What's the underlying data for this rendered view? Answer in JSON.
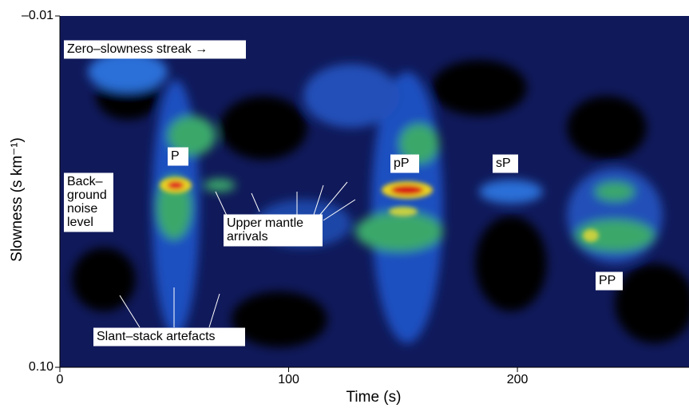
{
  "chart_data": {
    "type": "heatmap",
    "xlabel": "Time (s)",
    "ylabel": "Slowness (s km⁻¹)",
    "xlim": [
      0,
      275
    ],
    "xticks": [
      0,
      100,
      200
    ],
    "ylim": [
      -0.01,
      0.1
    ],
    "yticks": [
      {
        "value": -0.01,
        "label": "–0.01"
      },
      {
        "value": 0.1,
        "label": "0.10"
      }
    ],
    "y_inverted": true,
    "annotations": [
      {
        "lines": [
          "Zero–slowness streak →"
        ]
      },
      {
        "lines": [
          "P"
        ]
      },
      {
        "lines": [
          "Back–",
          "ground",
          "noise",
          "level"
        ]
      },
      {
        "lines": [
          "pP"
        ]
      },
      {
        "lines": [
          "sP"
        ]
      },
      {
        "lines": [
          "Upper mantle",
          "arrivals"
        ]
      },
      {
        "lines": [
          "PP"
        ]
      },
      {
        "lines": [
          "Slant–stack artefacts"
        ]
      }
    ]
  }
}
